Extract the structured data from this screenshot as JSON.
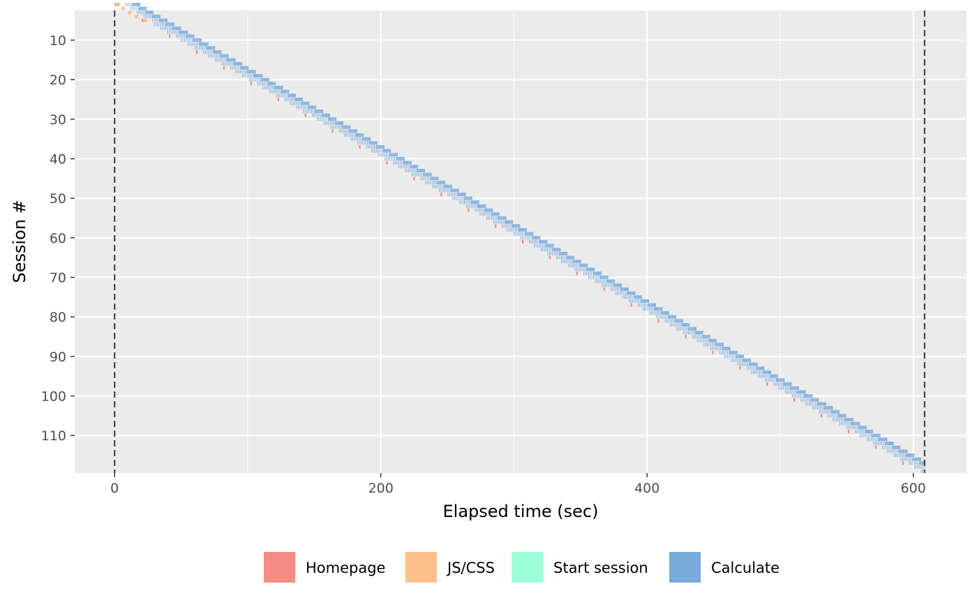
{
  "chart_data": {
    "type": "timeline",
    "xlabel": "Elapsed time (sec)",
    "ylabel": "Session #",
    "x_ticks": [
      0,
      200,
      400,
      600
    ],
    "x_range": [
      -30,
      640
    ],
    "y_ticks": [
      10,
      20,
      30,
      40,
      50,
      60,
      70,
      80,
      90,
      100,
      110
    ],
    "y_range": [
      2.5,
      119.5
    ],
    "y_reversed": true,
    "sessions": 119,
    "session_start_interval_sec": 5.1,
    "session_duration_sec": 19,
    "phases": [
      {
        "name": "Homepage",
        "color": "#F28C84"
      },
      {
        "name": "JS/CSS",
        "color": "#FEC189"
      },
      {
        "name": "Start session",
        "color": "#9CFFD8"
      },
      {
        "name": "Calculate",
        "color": "#78AADB"
      }
    ],
    "reference_lines": [
      {
        "x": 0,
        "style": "dashed"
      },
      {
        "x": 608.5,
        "style": "dashed"
      }
    ],
    "legend_position": "bottom",
    "grid": true,
    "background": "#EBEBEB"
  }
}
